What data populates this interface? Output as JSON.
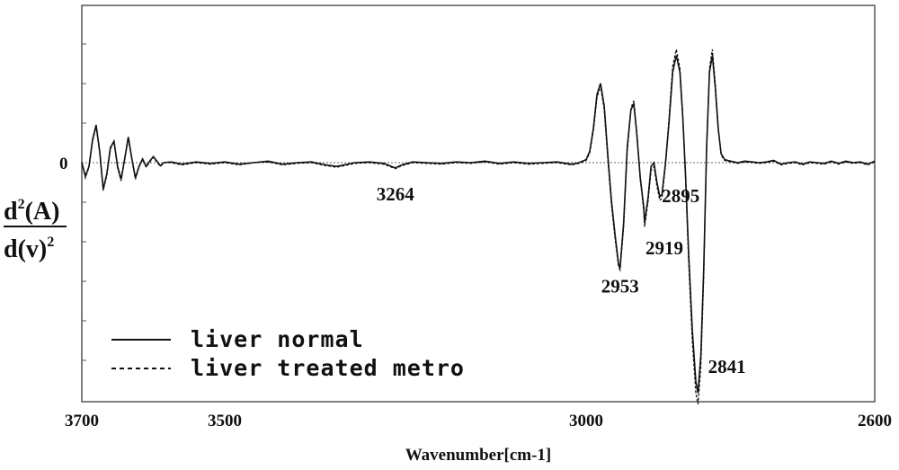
{
  "chart_data": {
    "type": "line",
    "xlabel": "Wavenumber[cm-1]",
    "ylabel": {
      "numerator_base": "d",
      "numerator_exp": "2",
      "numerator_rest": "(A)",
      "denominator_base": "d(v)",
      "denominator_exp": "2"
    },
    "xlim": [
      3700,
      2600
    ],
    "x_reversed": true,
    "x_ticks": [
      3700,
      3500,
      3000,
      2600
    ],
    "y_ticks": [
      "0"
    ],
    "grid": false,
    "legend_position": "bottom-left",
    "series": [
      {
        "name": "liver normal",
        "style": "solid",
        "points": [
          [
            3700,
            0.0
          ],
          [
            3695,
            -0.18
          ],
          [
            3690,
            -0.05
          ],
          [
            3685,
            0.3
          ],
          [
            3680,
            0.5
          ],
          [
            3675,
            0.15
          ],
          [
            3670,
            -0.35
          ],
          [
            3665,
            -0.15
          ],
          [
            3660,
            0.2
          ],
          [
            3655,
            0.28
          ],
          [
            3650,
            -0.05
          ],
          [
            3645,
            -0.22
          ],
          [
            3640,
            0.05
          ],
          [
            3635,
            0.34
          ],
          [
            3630,
            0.05
          ],
          [
            3625,
            -0.2
          ],
          [
            3620,
            -0.05
          ],
          [
            3615,
            0.05
          ],
          [
            3610,
            -0.05
          ],
          [
            3605,
            0.02
          ],
          [
            3600,
            0.08
          ],
          [
            3595,
            0.02
          ],
          [
            3590,
            -0.04
          ],
          [
            3585,
            0.0
          ],
          [
            3575,
            0.01
          ],
          [
            3560,
            -0.02
          ],
          [
            3540,
            0.01
          ],
          [
            3520,
            -0.01
          ],
          [
            3500,
            0.01
          ],
          [
            3480,
            -0.02
          ],
          [
            3460,
            0.0
          ],
          [
            3440,
            0.02
          ],
          [
            3420,
            -0.02
          ],
          [
            3400,
            0.0
          ],
          [
            3380,
            0.01
          ],
          [
            3360,
            -0.03
          ],
          [
            3345,
            -0.05
          ],
          [
            3335,
            -0.03
          ],
          [
            3320,
            0.0
          ],
          [
            3300,
            0.01
          ],
          [
            3280,
            -0.01
          ],
          [
            3264,
            -0.07
          ],
          [
            3255,
            -0.03
          ],
          [
            3240,
            0.01
          ],
          [
            3220,
            0.0
          ],
          [
            3200,
            -0.01
          ],
          [
            3180,
            0.01
          ],
          [
            3160,
            0.0
          ],
          [
            3140,
            0.02
          ],
          [
            3120,
            -0.01
          ],
          [
            3100,
            0.01
          ],
          [
            3080,
            -0.01
          ],
          [
            3060,
            0.0
          ],
          [
            3040,
            0.01
          ],
          [
            3020,
            -0.02
          ],
          [
            3010,
            0.0
          ],
          [
            3000,
            0.04
          ],
          [
            2995,
            0.15
          ],
          [
            2990,
            0.45
          ],
          [
            2985,
            0.9
          ],
          [
            2980,
            1.05
          ],
          [
            2975,
            0.75
          ],
          [
            2970,
            0.1
          ],
          [
            2965,
            -0.5
          ],
          [
            2960,
            -0.95
          ],
          [
            2955,
            -1.35
          ],
          [
            2953,
            -1.4
          ],
          [
            2948,
            -0.8
          ],
          [
            2943,
            0.2
          ],
          [
            2938,
            0.7
          ],
          [
            2934,
            0.78
          ],
          [
            2930,
            0.4
          ],
          [
            2925,
            -0.2
          ],
          [
            2920,
            -0.6
          ],
          [
            2919,
            -0.8
          ],
          [
            2914,
            -0.45
          ],
          [
            2910,
            -0.05
          ],
          [
            2906,
            -0.0
          ],
          [
            2902,
            -0.25
          ],
          [
            2898,
            -0.45
          ],
          [
            2895,
            -0.42
          ],
          [
            2890,
            0.0
          ],
          [
            2885,
            0.55
          ],
          [
            2880,
            1.2
          ],
          [
            2875,
            1.42
          ],
          [
            2870,
            1.2
          ],
          [
            2866,
            0.6
          ],
          [
            2862,
            -0.2
          ],
          [
            2858,
            -1.2
          ],
          [
            2853,
            -2.2
          ],
          [
            2848,
            -2.9
          ],
          [
            2845,
            -3.05
          ],
          [
            2841,
            -2.55
          ],
          [
            2837,
            -1.4
          ],
          [
            2833,
            0.2
          ],
          [
            2829,
            1.2
          ],
          [
            2825,
            1.42
          ],
          [
            2821,
            1.0
          ],
          [
            2817,
            0.45
          ],
          [
            2813,
            0.12
          ],
          [
            2808,
            0.04
          ],
          [
            2800,
            0.02
          ],
          [
            2790,
            0.0
          ],
          [
            2780,
            0.02
          ],
          [
            2770,
            0.01
          ],
          [
            2760,
            0.0
          ],
          [
            2750,
            0.01
          ],
          [
            2740,
            0.03
          ],
          [
            2730,
            -0.02
          ],
          [
            2720,
            0.0
          ],
          [
            2710,
            0.01
          ],
          [
            2700,
            -0.02
          ],
          [
            2690,
            0.01
          ],
          [
            2680,
            0.0
          ],
          [
            2670,
            -0.01
          ],
          [
            2660,
            0.02
          ],
          [
            2650,
            -0.01
          ],
          [
            2640,
            0.02
          ],
          [
            2630,
            0.0
          ],
          [
            2620,
            0.01
          ],
          [
            2610,
            -0.02
          ],
          [
            2600,
            0.02
          ]
        ]
      },
      {
        "name": "liver treated metro",
        "style": "dashed",
        "points": [
          [
            3700,
            0.0
          ],
          [
            3695,
            -0.2
          ],
          [
            3690,
            -0.06
          ],
          [
            3685,
            0.28
          ],
          [
            3680,
            0.48
          ],
          [
            3675,
            0.14
          ],
          [
            3670,
            -0.37
          ],
          [
            3665,
            -0.17
          ],
          [
            3660,
            0.18
          ],
          [
            3655,
            0.3
          ],
          [
            3650,
            -0.07
          ],
          [
            3645,
            -0.24
          ],
          [
            3640,
            0.04
          ],
          [
            3635,
            0.32
          ],
          [
            3630,
            0.04
          ],
          [
            3625,
            -0.22
          ],
          [
            3620,
            -0.06
          ],
          [
            3615,
            0.04
          ],
          [
            3610,
            -0.06
          ],
          [
            3605,
            0.01
          ],
          [
            3600,
            0.07
          ],
          [
            3595,
            0.01
          ],
          [
            3590,
            -0.05
          ],
          [
            3585,
            0.0
          ],
          [
            3575,
            0.0
          ],
          [
            3560,
            -0.03
          ],
          [
            3540,
            0.0
          ],
          [
            3520,
            -0.02
          ],
          [
            3500,
            0.0
          ],
          [
            3480,
            -0.03
          ],
          [
            3460,
            0.0
          ],
          [
            3440,
            0.01
          ],
          [
            3420,
            -0.03
          ],
          [
            3400,
            -0.01
          ],
          [
            3380,
            0.0
          ],
          [
            3360,
            -0.04
          ],
          [
            3345,
            -0.06
          ],
          [
            3335,
            -0.04
          ],
          [
            3320,
            -0.01
          ],
          [
            3300,
            0.0
          ],
          [
            3280,
            -0.02
          ],
          [
            3264,
            -0.08
          ],
          [
            3255,
            -0.04
          ],
          [
            3240,
            0.0
          ],
          [
            3220,
            -0.01
          ],
          [
            3200,
            -0.02
          ],
          [
            3180,
            0.0
          ],
          [
            3160,
            -0.01
          ],
          [
            3140,
            0.01
          ],
          [
            3120,
            -0.02
          ],
          [
            3100,
            0.0
          ],
          [
            3080,
            -0.02
          ],
          [
            3060,
            -0.01
          ],
          [
            3040,
            0.0
          ],
          [
            3020,
            -0.03
          ],
          [
            3010,
            -0.01
          ],
          [
            3000,
            0.03
          ],
          [
            2995,
            0.13
          ],
          [
            2990,
            0.42
          ],
          [
            2985,
            0.86
          ],
          [
            2980,
            1.02
          ],
          [
            2975,
            0.7
          ],
          [
            2970,
            0.05
          ],
          [
            2965,
            -0.55
          ],
          [
            2960,
            -1.0
          ],
          [
            2955,
            -1.38
          ],
          [
            2953,
            -1.42
          ],
          [
            2948,
            -0.85
          ],
          [
            2943,
            0.15
          ],
          [
            2938,
            0.72
          ],
          [
            2934,
            0.82
          ],
          [
            2930,
            0.42
          ],
          [
            2925,
            -0.22
          ],
          [
            2920,
            -0.65
          ],
          [
            2919,
            -0.85
          ],
          [
            2914,
            -0.5
          ],
          [
            2910,
            -0.1
          ],
          [
            2906,
            -0.05
          ],
          [
            2902,
            -0.3
          ],
          [
            2898,
            -0.5
          ],
          [
            2895,
            -0.47
          ],
          [
            2890,
            -0.02
          ],
          [
            2885,
            0.6
          ],
          [
            2880,
            1.28
          ],
          [
            2875,
            1.5
          ],
          [
            2870,
            1.25
          ],
          [
            2866,
            0.62
          ],
          [
            2862,
            -0.25
          ],
          [
            2858,
            -1.3
          ],
          [
            2853,
            -2.35
          ],
          [
            2848,
            -3.05
          ],
          [
            2845,
            -3.2
          ],
          [
            2841,
            -2.7
          ],
          [
            2837,
            -1.5
          ],
          [
            2833,
            0.18
          ],
          [
            2829,
            1.25
          ],
          [
            2825,
            1.5
          ],
          [
            2821,
            1.05
          ],
          [
            2817,
            0.48
          ],
          [
            2813,
            0.1
          ],
          [
            2808,
            0.03
          ],
          [
            2800,
            0.01
          ],
          [
            2790,
            -0.01
          ],
          [
            2780,
            0.01
          ],
          [
            2770,
            0.0
          ],
          [
            2760,
            -0.01
          ],
          [
            2750,
            0.0
          ],
          [
            2740,
            0.02
          ],
          [
            2730,
            -0.03
          ],
          [
            2720,
            -0.01
          ],
          [
            2710,
            0.0
          ],
          [
            2700,
            -0.03
          ],
          [
            2690,
            0.0
          ],
          [
            2680,
            -0.01
          ],
          [
            2670,
            -0.02
          ],
          [
            2660,
            0.01
          ],
          [
            2650,
            -0.02
          ],
          [
            2640,
            0.01
          ],
          [
            2630,
            -0.01
          ],
          [
            2620,
            0.0
          ],
          [
            2610,
            -0.03
          ],
          [
            2600,
            0.01
          ]
        ]
      }
    ],
    "annotations": [
      {
        "text": "3264",
        "x": 3264,
        "y": -0.07
      },
      {
        "text": "2953",
        "x": 2953,
        "y": -1.4
      },
      {
        "text": "2919",
        "x": 2919,
        "y": -0.8
      },
      {
        "text": "2895",
        "x": 2895,
        "y": -0.45
      },
      {
        "text": "2841",
        "x": 2841,
        "y": -2.55
      }
    ],
    "legend": [
      {
        "label": "liver normal",
        "style": "solid"
      },
      {
        "label": "liver treated metro",
        "style": "dashed"
      }
    ]
  }
}
